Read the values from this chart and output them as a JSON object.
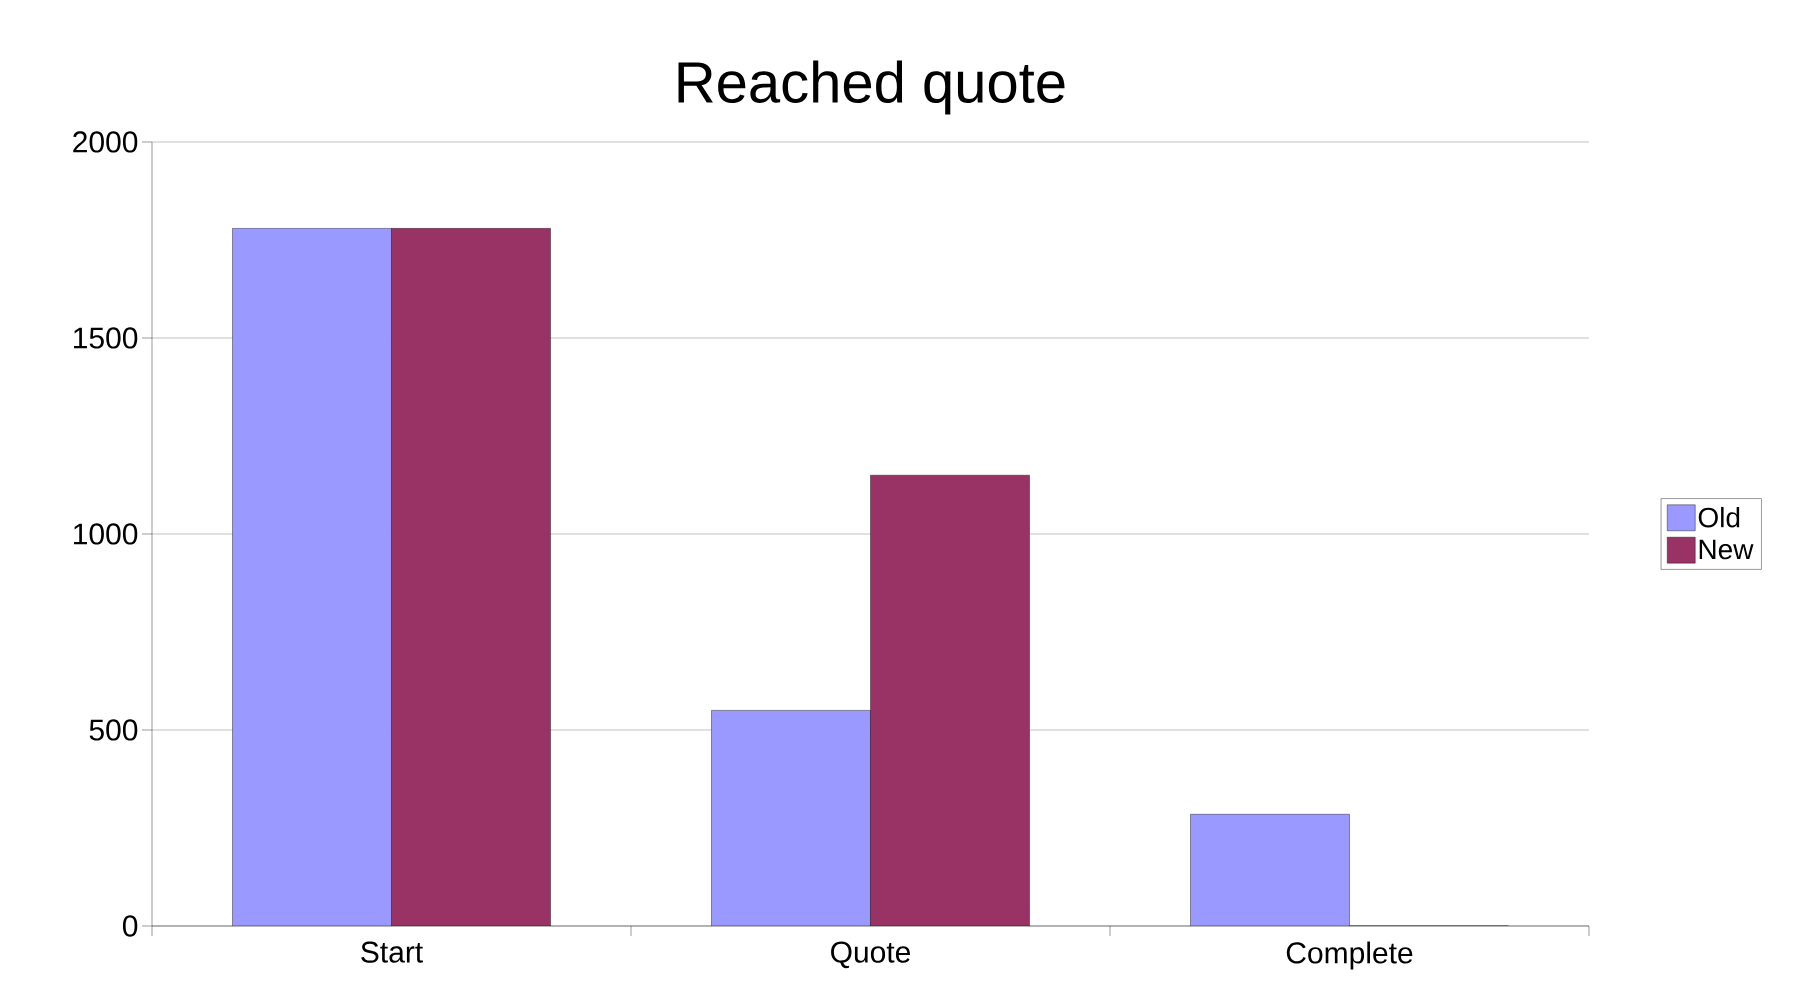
{
  "chart_data": {
    "type": "bar",
    "title": "Reached quote",
    "categories": [
      "Start",
      "Quote",
      "Complete"
    ],
    "series": [
      {
        "name": "Old",
        "color": "#9999ff",
        "values": [
          1780,
          550,
          285
        ]
      },
      {
        "name": "New",
        "color": "#993366",
        "values": [
          1780,
          1150,
          0
        ]
      }
    ],
    "ylim": [
      0,
      2000
    ],
    "yticks": [
      0,
      500,
      1000,
      1500,
      2000
    ],
    "grid": "y",
    "legend": "right"
  }
}
